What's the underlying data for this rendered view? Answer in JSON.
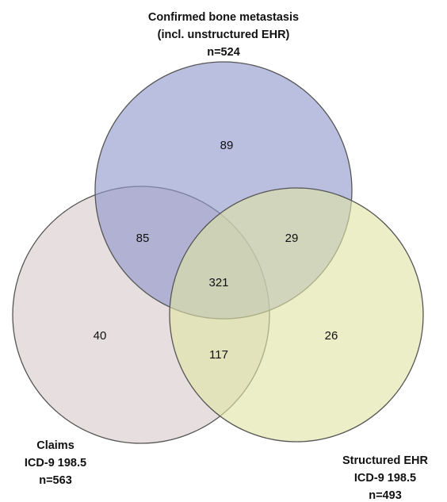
{
  "sets": {
    "confirmed": {
      "label_lines": [
        "Confirmed bone metastasis",
        "(incl. unstructured EHR)",
        "n=524"
      ],
      "color": "#8f96cc"
    },
    "claims": {
      "label_lines": [
        "Claims",
        "ICD-9 198.5",
        "n=563"
      ],
      "color": "#d9cccc"
    },
    "structured": {
      "label_lines": [
        "Structured EHR",
        "ICD-9 198.5",
        "n=493"
      ],
      "color": "#dfe4a4"
    }
  },
  "regions": {
    "confirmed_only": "89",
    "claims_only": "40",
    "structured_only": "26",
    "confirmed_claims": "85",
    "confirmed_structured": "29",
    "claims_structured": "117",
    "all_three": "321"
  }
}
